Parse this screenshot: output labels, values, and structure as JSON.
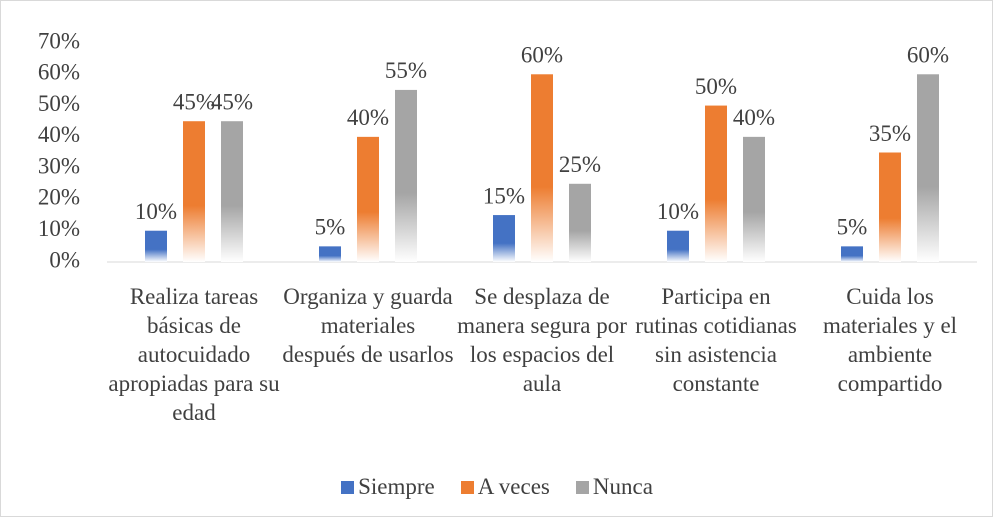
{
  "chart_data": {
    "type": "bar",
    "categories": [
      "Realiza tareas básicas de autocuidado apropiadas para su edad",
      "Organiza y guarda materiales después de usarlos",
      "Se desplaza de manera segura por los espacios del aula",
      "Participa en rutinas cotidianas sin asistencia constante",
      "Cuida los materiales y el ambiente compartido"
    ],
    "series": [
      {
        "name": "Siempre",
        "color": "#4472c4",
        "values": [
          10,
          5,
          15,
          10,
          5
        ],
        "value_labels": [
          "10%",
          "5%",
          "15%",
          "10%",
          "5%"
        ]
      },
      {
        "name": "A veces",
        "color": "#ed7d31",
        "values": [
          45,
          40,
          60,
          50,
          35
        ],
        "value_labels": [
          "45%",
          "40%",
          "60%",
          "50%",
          "35%"
        ]
      },
      {
        "name": "Nunca",
        "color": "#a5a5a5",
        "values": [
          45,
          55,
          25,
          40,
          60
        ],
        "value_labels": [
          "45%",
          "55%",
          "25%",
          "40%",
          "60%"
        ]
      }
    ],
    "ylim": [
      0,
      70
    ],
    "yticks": [
      {
        "value": 0,
        "label": "0%"
      },
      {
        "value": 10,
        "label": "10%"
      },
      {
        "value": 20,
        "label": "20%"
      },
      {
        "value": 30,
        "label": "30%"
      },
      {
        "value": 40,
        "label": "40%"
      },
      {
        "value": 50,
        "label": "50%"
      },
      {
        "value": 60,
        "label": "60%"
      },
      {
        "value": 70,
        "label": "70%"
      }
    ],
    "grid": false,
    "legend": "bottom"
  }
}
